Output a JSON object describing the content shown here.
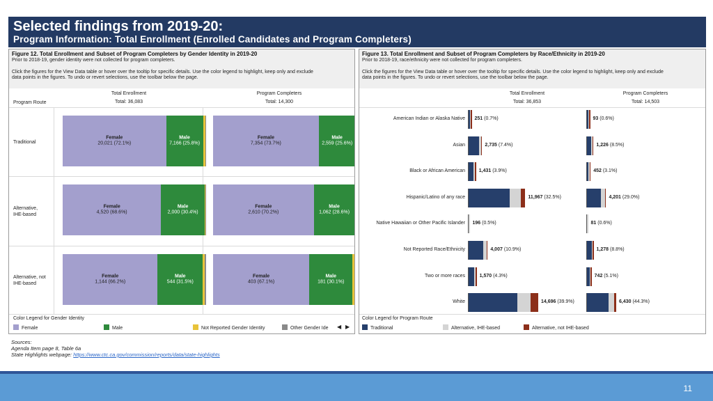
{
  "header": {
    "title": "Selected findings from 2019-20:",
    "subtitle": "Program Information: Total Enrollment (Enrolled Candidates and Program Completers)"
  },
  "fig12": {
    "title": "Figure 12. Total Enrollment and Subset of Program Completers by Gender Identity in 2019-20",
    "note": "Prior to 2018-19, gender identity were not collected for program completers.",
    "instructions1": "Click the figures for the View Data table or hover over the tooltip for specific details.  Use the color legend to highlight, keep only and exclude",
    "instructions2": "data points in the figures.  To undo or revert selections, use the toolbar below the page.",
    "route_header": "Program Route",
    "col1_title": "Total Enrollment",
    "col1_total": "Total: 36,083",
    "col2_title": "Program Completers",
    "col2_total": "Total: 14,300",
    "routes": [
      "Traditional",
      "Alternative,\nIHE-based",
      "Alternative, not\nIHE-based"
    ],
    "legend_title": "Color Legend for Gender Identity",
    "legend": [
      "Female",
      "Male",
      "Not Reported Gender Identity",
      "Other Gender Ide"
    ],
    "colors": {
      "female": "#a39fcd",
      "male": "#2e8a3c",
      "not_reported": "#e8c33a",
      "other": "#8a8a8a"
    }
  },
  "fig13": {
    "title": "Figure 13. Total Enrollment and Subset of Program Completers by Race/Ethnicity in 2019-20",
    "note": "Prior to 2018-19, race/ethnicity were not collected for program completers.",
    "instructions1": "Click the figures for the View Data table or hover over the tooltip for specific details.  Use the color legend to highlight, keep only and exclude",
    "instructions2": "data points in the figures.  To undo or revert selections, use the toolbar below the page.",
    "col1_title": "Total Enrollment",
    "col1_total": "Total: 36,853",
    "col2_title": "Program Completers",
    "col2_total": "Total: 14,503",
    "legend_title": "Color Legend for Program Route",
    "legend": [
      "Traditional",
      "Alternative, IHE-based",
      "Alternative, not IHE-based"
    ],
    "colors": {
      "traditional": "#263f6b",
      "alt_ihe": "#d4d4d4",
      "alt_not_ihe": "#8c2f1a"
    }
  },
  "chart_data": [
    {
      "type": "bar",
      "title": "Figure 12. Total Enrollment and Subset of Program Completers by Gender Identity in 2019-20",
      "categories": [
        "Traditional",
        "Alternative, IHE-based",
        "Alternative, not IHE-based"
      ],
      "panels": [
        {
          "name": "Total Enrollment",
          "rows": [
            {
              "female": {
                "label": "20,021 (72.1%)",
                "pct": 72.1
              },
              "male": {
                "label": "7,166 (25.8%)",
                "pct": 25.8
              },
              "not_reported_pct": 1.7,
              "other_pct": 0.4
            },
            {
              "female": {
                "label": "4,520 (68.6%)",
                "pct": 68.6
              },
              "male": {
                "label": "2,000 (30.4%)",
                "pct": 30.4
              },
              "not_reported_pct": 0.7,
              "other_pct": 0.3
            },
            {
              "female": {
                "label": "1,144 (66.2%)",
                "pct": 66.2
              },
              "male": {
                "label": "544 (31.5%)",
                "pct": 31.5
              },
              "not_reported_pct": 1.4,
              "other_pct": 0.9
            }
          ]
        },
        {
          "name": "Program Completers",
          "rows": [
            {
              "female": {
                "label": "7,354 (73.7%)",
                "pct": 73.7
              },
              "male": {
                "label": "2,559 (25.6%)",
                "pct": 25.6
              },
              "not_reported_pct": 0.5,
              "other_pct": 0.2
            },
            {
              "female": {
                "label": "2,610 (70.2%)",
                "pct": 70.2
              },
              "male": {
                "label": "1,062 (28.6%)",
                "pct": 28.6
              },
              "not_reported_pct": 0.8,
              "other_pct": 0.4
            },
            {
              "female": {
                "label": "403 (67.1%)",
                "pct": 67.1
              },
              "male": {
                "label": "181 (30.1%)",
                "pct": 30.1
              },
              "not_reported_pct": 1.8,
              "other_pct": 1.0
            }
          ]
        }
      ]
    },
    {
      "type": "bar",
      "title": "Figure 13. Total Enrollment and Subset of Program Completers by Race/Ethnicity in 2019-20",
      "categories": [
        "American Indian or Alaska Native",
        "Asian",
        "Black or African American",
        "Hispanic/Latino of any race",
        "Native Hawaiian or Other Pacific Islander",
        "Not Reported Race/Ethnicity",
        "Two or more races",
        "White"
      ],
      "panels": [
        {
          "name": "Total Enrollment",
          "max_value": 14696,
          "rows": [
            {
              "label_num": "251",
              "label_pct": "(0.7%)",
              "traditional": 150,
              "alt_ihe": 75,
              "alt_not_ihe": 26
            },
            {
              "label_num": "2,735",
              "label_pct": "(7.4%)",
              "traditional": 2200,
              "alt_ihe": 430,
              "alt_not_ihe": 105
            },
            {
              "label_num": "1,431",
              "label_pct": "(3.9%)",
              "traditional": 1100,
              "alt_ihe": 260,
              "alt_not_ihe": 71
            },
            {
              "label_num": "11,967",
              "label_pct": "(32.5%)",
              "traditional": 8700,
              "alt_ihe": 2300,
              "alt_not_ihe": 967
            },
            {
              "label_num": "196",
              "label_pct": "(0.5%)",
              "traditional": 0,
              "alt_ihe": 196,
              "alt_not_ihe": 0
            },
            {
              "label_num": "4,007",
              "label_pct": "(10.9%)",
              "traditional": 3100,
              "alt_ihe": 700,
              "alt_not_ihe": 207
            },
            {
              "label_num": "1,570",
              "label_pct": "(4.3%)",
              "traditional": 1200,
              "alt_ihe": 290,
              "alt_not_ihe": 80
            },
            {
              "label_num": "14,696",
              "label_pct": "(39.9%)",
              "traditional": 10300,
              "alt_ihe": 2800,
              "alt_not_ihe": 1596
            }
          ]
        },
        {
          "name": "Program Completers",
          "max_value": 6430,
          "rows": [
            {
              "label_num": "93",
              "label_pct": "(0.6%)",
              "traditional": 60,
              "alt_ihe": 26,
              "alt_not_ihe": 7
            },
            {
              "label_num": "1,226",
              "label_pct": "(8.5%)",
              "traditional": 980,
              "alt_ihe": 206,
              "alt_not_ihe": 40
            },
            {
              "label_num": "452",
              "label_pct": "(3.1%)",
              "traditional": 340,
              "alt_ihe": 90,
              "alt_not_ihe": 22
            },
            {
              "label_num": "4,201",
              "label_pct": "(29.0%)",
              "traditional": 3000,
              "alt_ihe": 960,
              "alt_not_ihe": 241
            },
            {
              "label_num": "81",
              "label_pct": "(0.6%)",
              "traditional": 0,
              "alt_ihe": 81,
              "alt_not_ihe": 0
            },
            {
              "label_num": "1,278",
              "label_pct": "(8.8%)",
              "traditional": 1000,
              "alt_ihe": 230,
              "alt_not_ihe": 48
            },
            {
              "label_num": "742",
              "label_pct": "(5.1%)",
              "traditional": 560,
              "alt_ihe": 150,
              "alt_not_ihe": 32
            },
            {
              "label_num": "6,430",
              "label_pct": "(44.3%)",
              "traditional": 4700,
              "alt_ihe": 1300,
              "alt_not_ihe": 430
            }
          ]
        }
      ]
    }
  ],
  "sources": {
    "label": "Sources:",
    "line1": "Agenda Item page 8, Table 6a",
    "line2_prefix": "State Highlights webpage: ",
    "link": "https://www.ctc.ca.gov/commission/reports/data/state-highlights"
  },
  "footer": {
    "page_number": "11"
  }
}
